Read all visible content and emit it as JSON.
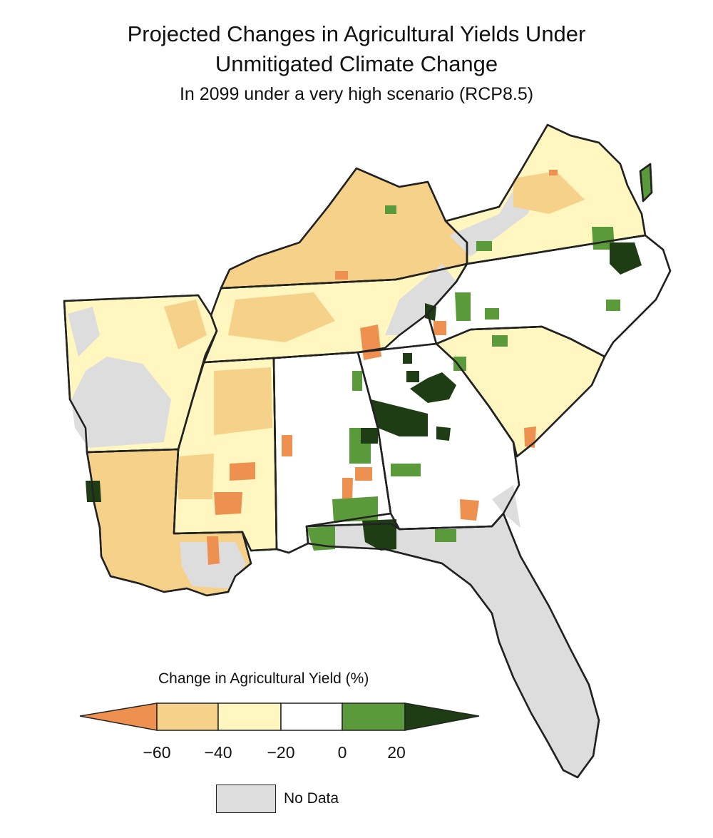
{
  "title_line1": "Projected Changes in Agricultural Yields Under",
  "title_line2": "Unmitigated Climate Change",
  "subtitle": "In 2099 under a very high scenario (RCP8.5)",
  "legend": {
    "title": "Change in Agricultural Yield (%)",
    "ticks": [
      "-60",
      "-40",
      "-20",
      "0",
      "20"
    ],
    "bins": [
      {
        "label": "< -60",
        "color": "#ee9150"
      },
      {
        "label": "-60 to -40",
        "color": "#f6d18a"
      },
      {
        "label": "-40 to -20",
        "color": "#fff7bf"
      },
      {
        "label": "-20 to 0",
        "color": "#ffffff"
      },
      {
        "label": "0 to 20",
        "color": "#5b9a3a"
      },
      {
        "label": "> 20",
        "color": "#1f3d14"
      }
    ],
    "no_data_label": "No Data",
    "no_data_color": "#dddddd"
  },
  "map_data": {
    "region": "Southeastern United States",
    "no_data_areas": [
      "Florida peninsula",
      "western Arkansas uplands",
      "Appalachian highlands",
      "southern Louisiana coast"
    ],
    "strong_increase_areas": [
      "central Georgia",
      "southern Alabama / Florida panhandle border",
      "northeastern North Carolina",
      "Virginia Eastern Shore",
      "northwestern Louisiana"
    ],
    "strong_decrease_areas": [
      "northern Alabama",
      "southern Mississippi",
      "central South Carolina coast",
      "southeastern Louisiana"
    ]
  }
}
